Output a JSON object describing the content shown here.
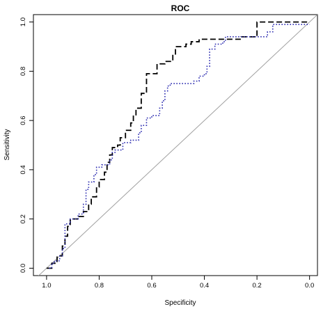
{
  "chart_data": {
    "type": "line",
    "title": "ROC",
    "xlabel": "Specificity",
    "ylabel": "Sensitivity",
    "xlim": [
      1.05,
      -0.03
    ],
    "ylim": [
      -0.03,
      1.03
    ],
    "x_reversed": true,
    "grid": false,
    "legend": "none",
    "x_ticks": [
      "1.0",
      "0.8",
      "0.6",
      "0.4",
      "0.2",
      "0.0"
    ],
    "x_tick_values": [
      1.0,
      0.8,
      0.6,
      0.4,
      0.2,
      0.0
    ],
    "y_ticks": [
      "0.0",
      "0.2",
      "0.4",
      "0.6",
      "0.8",
      "1.0"
    ],
    "y_tick_values": [
      0.0,
      0.2,
      0.4,
      0.6,
      0.8,
      1.0
    ],
    "reference_line": {
      "from": [
        1.05,
        -0.05
      ],
      "to": [
        -0.05,
        1.05
      ],
      "color": "#a0a0a0"
    },
    "series": [
      {
        "style": "dashed",
        "color": "#000000",
        "points": [
          [
            1.0,
            0.0
          ],
          [
            0.98,
            0.0
          ],
          [
            0.98,
            0.02
          ],
          [
            0.96,
            0.02
          ],
          [
            0.96,
            0.05
          ],
          [
            0.94,
            0.05
          ],
          [
            0.94,
            0.09
          ],
          [
            0.93,
            0.09
          ],
          [
            0.93,
            0.13
          ],
          [
            0.92,
            0.13
          ],
          [
            0.92,
            0.17
          ],
          [
            0.91,
            0.17
          ],
          [
            0.91,
            0.2
          ],
          [
            0.88,
            0.2
          ],
          [
            0.88,
            0.21
          ],
          [
            0.86,
            0.21
          ],
          [
            0.86,
            0.23
          ],
          [
            0.84,
            0.23
          ],
          [
            0.84,
            0.26
          ],
          [
            0.83,
            0.26
          ],
          [
            0.83,
            0.29
          ],
          [
            0.81,
            0.29
          ],
          [
            0.81,
            0.33
          ],
          [
            0.8,
            0.33
          ],
          [
            0.8,
            0.36
          ],
          [
            0.78,
            0.36
          ],
          [
            0.78,
            0.39
          ],
          [
            0.77,
            0.39
          ],
          [
            0.77,
            0.43
          ],
          [
            0.76,
            0.43
          ],
          [
            0.76,
            0.46
          ],
          [
            0.75,
            0.46
          ],
          [
            0.75,
            0.49
          ],
          [
            0.73,
            0.49
          ],
          [
            0.73,
            0.5
          ],
          [
            0.72,
            0.5
          ],
          [
            0.72,
            0.53
          ],
          [
            0.7,
            0.53
          ],
          [
            0.7,
            0.56
          ],
          [
            0.68,
            0.56
          ],
          [
            0.68,
            0.59
          ],
          [
            0.67,
            0.59
          ],
          [
            0.67,
            0.62
          ],
          [
            0.66,
            0.62
          ],
          [
            0.66,
            0.65
          ],
          [
            0.64,
            0.65
          ],
          [
            0.64,
            0.71
          ],
          [
            0.62,
            0.71
          ],
          [
            0.62,
            0.79
          ],
          [
            0.58,
            0.79
          ],
          [
            0.58,
            0.83
          ],
          [
            0.55,
            0.83
          ],
          [
            0.55,
            0.84
          ],
          [
            0.52,
            0.84
          ],
          [
            0.52,
            0.87
          ],
          [
            0.51,
            0.87
          ],
          [
            0.51,
            0.9
          ],
          [
            0.47,
            0.9
          ],
          [
            0.47,
            0.91
          ],
          [
            0.45,
            0.91
          ],
          [
            0.45,
            0.92
          ],
          [
            0.42,
            0.92
          ],
          [
            0.42,
            0.93
          ],
          [
            0.26,
            0.93
          ],
          [
            0.26,
            0.94
          ],
          [
            0.2,
            0.94
          ],
          [
            0.2,
            1.0
          ],
          [
            0.0,
            1.0
          ]
        ]
      },
      {
        "style": "dotted",
        "color": "#2b2bb0",
        "points": [
          [
            0.99,
            0.0
          ],
          [
            0.98,
            0.0
          ],
          [
            0.98,
            0.02
          ],
          [
            0.97,
            0.02
          ],
          [
            0.97,
            0.03
          ],
          [
            0.95,
            0.03
          ],
          [
            0.95,
            0.05
          ],
          [
            0.94,
            0.05
          ],
          [
            0.94,
            0.08
          ],
          [
            0.93,
            0.08
          ],
          [
            0.93,
            0.18
          ],
          [
            0.91,
            0.18
          ],
          [
            0.91,
            0.2
          ],
          [
            0.88,
            0.2
          ],
          [
            0.88,
            0.22
          ],
          [
            0.86,
            0.22
          ],
          [
            0.86,
            0.26
          ],
          [
            0.85,
            0.26
          ],
          [
            0.85,
            0.32
          ],
          [
            0.84,
            0.32
          ],
          [
            0.84,
            0.35
          ],
          [
            0.82,
            0.35
          ],
          [
            0.82,
            0.38
          ],
          [
            0.81,
            0.38
          ],
          [
            0.81,
            0.41
          ],
          [
            0.79,
            0.41
          ],
          [
            0.79,
            0.42
          ],
          [
            0.76,
            0.42
          ],
          [
            0.76,
            0.44
          ],
          [
            0.75,
            0.44
          ],
          [
            0.75,
            0.47
          ],
          [
            0.74,
            0.47
          ],
          [
            0.74,
            0.48
          ],
          [
            0.71,
            0.48
          ],
          [
            0.71,
            0.51
          ],
          [
            0.68,
            0.51
          ],
          [
            0.68,
            0.52
          ],
          [
            0.65,
            0.52
          ],
          [
            0.65,
            0.55
          ],
          [
            0.64,
            0.55
          ],
          [
            0.64,
            0.58
          ],
          [
            0.62,
            0.58
          ],
          [
            0.62,
            0.61
          ],
          [
            0.6,
            0.61
          ],
          [
            0.6,
            0.62
          ],
          [
            0.57,
            0.62
          ],
          [
            0.57,
            0.65
          ],
          [
            0.56,
            0.65
          ],
          [
            0.56,
            0.68
          ],
          [
            0.55,
            0.68
          ],
          [
            0.55,
            0.72
          ],
          [
            0.54,
            0.72
          ],
          [
            0.54,
            0.74
          ],
          [
            0.53,
            0.74
          ],
          [
            0.53,
            0.75
          ],
          [
            0.44,
            0.75
          ],
          [
            0.44,
            0.76
          ],
          [
            0.42,
            0.76
          ],
          [
            0.42,
            0.78
          ],
          [
            0.4,
            0.78
          ],
          [
            0.4,
            0.79
          ],
          [
            0.39,
            0.79
          ],
          [
            0.39,
            0.82
          ],
          [
            0.38,
            0.82
          ],
          [
            0.38,
            0.89
          ],
          [
            0.36,
            0.89
          ],
          [
            0.36,
            0.91
          ],
          [
            0.33,
            0.91
          ],
          [
            0.33,
            0.92
          ],
          [
            0.32,
            0.92
          ],
          [
            0.32,
            0.94
          ],
          [
            0.16,
            0.94
          ],
          [
            0.16,
            0.96
          ],
          [
            0.14,
            0.96
          ],
          [
            0.14,
            0.99
          ],
          [
            0.0,
            0.99
          ]
        ]
      }
    ]
  }
}
